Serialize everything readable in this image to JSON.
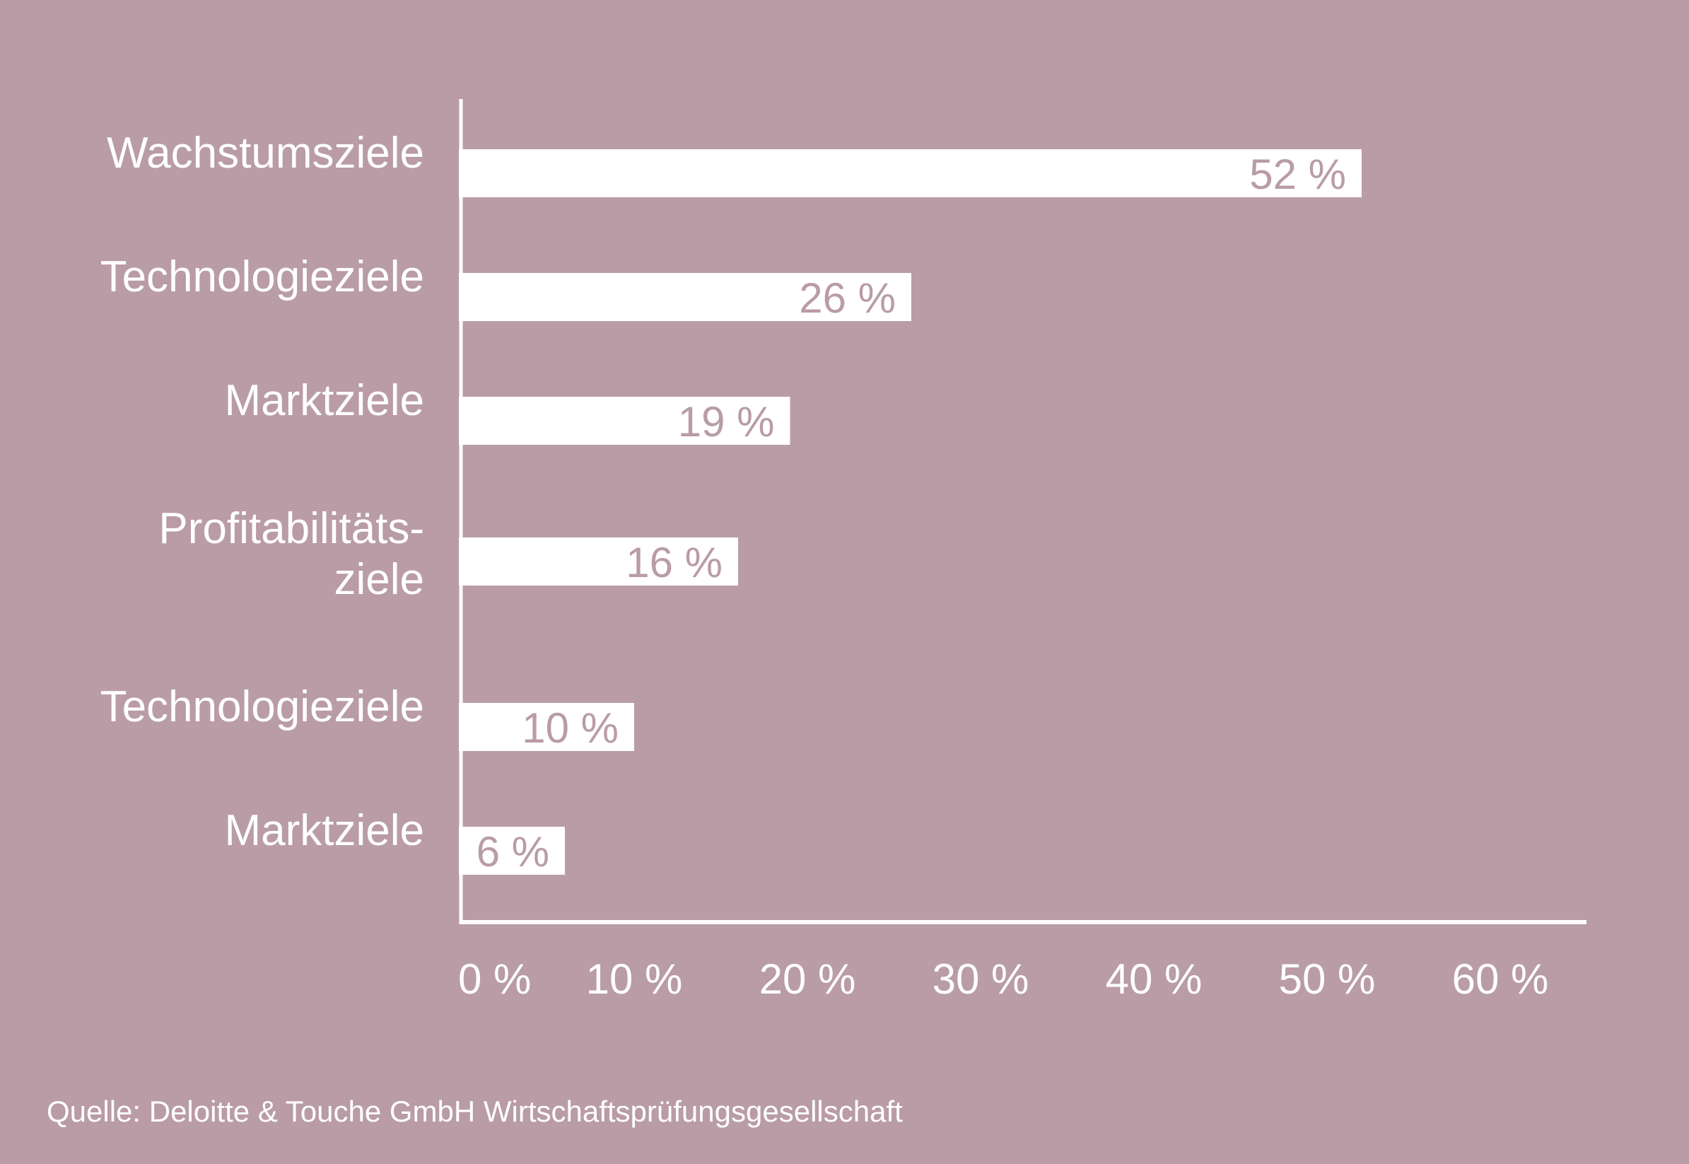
{
  "colors": {
    "background": "#b99ca5",
    "bar": "#ffffff",
    "value_text": "#b99ca5",
    "axis": "#ffffff"
  },
  "chart_data": {
    "type": "bar",
    "orientation": "horizontal",
    "categories": [
      [
        "Wachstumsziele"
      ],
      [
        "Technologieziele"
      ],
      [
        "Marktziele"
      ],
      [
        "Profitabilitäts-",
        "ziele"
      ],
      [
        "Technologieziele"
      ],
      [
        "Marktziele"
      ]
    ],
    "values": [
      52,
      26,
      19,
      16,
      10,
      6
    ],
    "value_labels": [
      "52 %",
      "26 %",
      "19 %",
      "16 %",
      "10 %",
      "6 %"
    ],
    "x_ticks": [
      0,
      10,
      20,
      30,
      40,
      50,
      60
    ],
    "x_tick_labels": [
      "0 %",
      "10 %",
      "20 %",
      "30 %",
      "40 %",
      "50 %",
      "60 %"
    ],
    "xlim": [
      0,
      64
    ],
    "grid": false,
    "legend": "none"
  },
  "source": "Quelle: Deloitte & Touche GmbH Wirtschaftsprüfungsgesellschaft"
}
